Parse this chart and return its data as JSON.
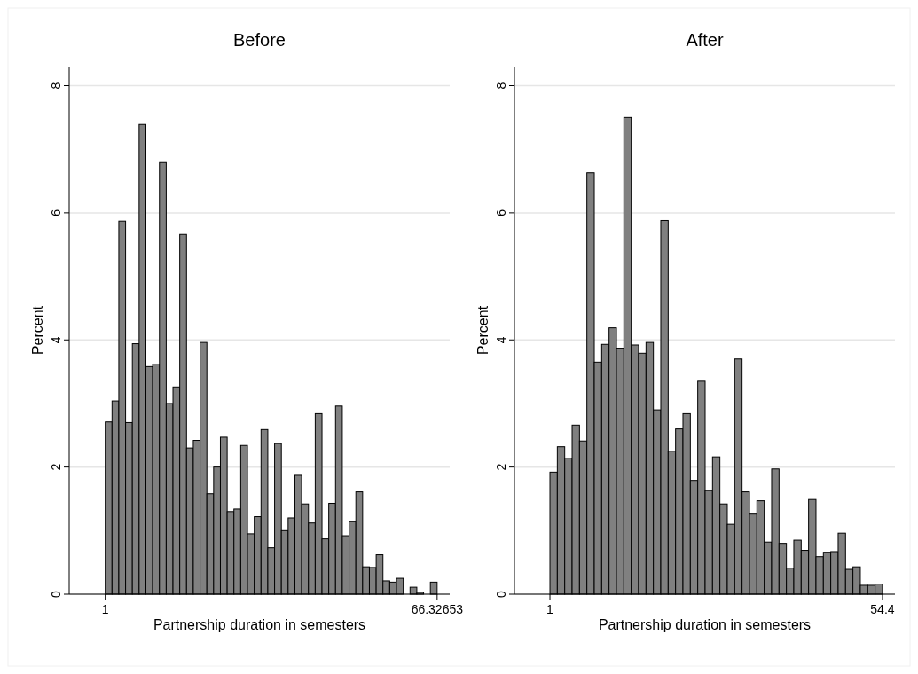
{
  "chart_data": [
    {
      "type": "histogram",
      "title": "Before",
      "xlabel": "Partnership duration in semesters",
      "ylabel": "Percent",
      "color": "#808080",
      "grid": "y",
      "xlim": [
        -6.1,
        68.8
      ],
      "xticks": [
        1,
        66.32653
      ],
      "ylim": [
        0,
        8.3
      ],
      "yticks": [
        0,
        2,
        4,
        6,
        8
      ],
      "bins": [
        1,
        2.3332,
        3.6664,
        4.9996,
        6.3328,
        7.666,
        8.9992,
        10.3324,
        11.6656,
        12.9987,
        14.3319,
        15.6651,
        16.9983,
        18.3315,
        19.6647,
        20.9979,
        22.3311,
        23.6643,
        24.9975,
        26.3307,
        27.6639,
        28.9971,
        30.3303,
        31.6635,
        32.9967,
        34.3299,
        35.663,
        36.9962,
        38.3294,
        39.6626,
        40.9958,
        42.329,
        43.6622,
        44.9954,
        46.3286,
        47.6618,
        48.995,
        50.3282,
        51.6614,
        52.9946,
        54.3278,
        55.661,
        56.9942,
        58.3274,
        59.6605,
        60.9937,
        62.3269,
        63.6601,
        64.9933,
        66.32653
      ],
      "values": [
        2.71,
        3.04,
        5.87,
        2.7,
        3.94,
        7.39,
        3.58,
        3.62,
        6.79,
        3.0,
        3.26,
        5.66,
        2.3,
        2.42,
        3.96,
        1.58,
        2.0,
        2.47,
        1.3,
        1.34,
        2.34,
        0.95,
        1.22,
        2.59,
        0.73,
        2.37,
        1.0,
        1.2,
        1.87,
        1.42,
        1.12,
        2.84,
        0.87,
        1.43,
        2.96,
        0.92,
        1.14,
        1.61,
        0.43,
        0.42,
        0.62,
        0.21,
        0.19,
        0.25,
        0,
        0.11,
        0.03,
        0,
        0.19
      ]
    },
    {
      "type": "histogram",
      "title": "After",
      "xlabel": "Partnership duration in semesters",
      "ylabel": "Percent",
      "color": "#808080",
      "grid": "y",
      "xlim": [
        -4.7,
        56.4
      ],
      "xticks": [
        1,
        54.4
      ],
      "ylim": [
        0,
        8.3
      ],
      "yticks": [
        0,
        2,
        4,
        6,
        8
      ],
      "bins": [
        1,
        2.1867,
        3.3733,
        4.56,
        5.7467,
        6.9333,
        8.12,
        9.3067,
        10.4933,
        11.68,
        12.8667,
        14.0533,
        15.24,
        16.4267,
        17.6133,
        18.8,
        19.9867,
        21.1733,
        22.36,
        23.5467,
        24.7333,
        25.92,
        27.1067,
        28.2933,
        29.48,
        30.6667,
        31.8533,
        33.04,
        34.2267,
        35.4133,
        36.6,
        37.7867,
        38.9733,
        40.16,
        41.3467,
        42.5333,
        43.72,
        44.9067,
        46.0933,
        47.28,
        48.4667,
        49.6533,
        50.84,
        52.0267,
        53.2133,
        54.4
      ],
      "values": [
        1.92,
        2.32,
        2.14,
        2.66,
        2.41,
        6.63,
        3.65,
        3.93,
        4.19,
        3.87,
        7.5,
        3.92,
        3.79,
        3.96,
        2.9,
        5.88,
        2.25,
        2.6,
        2.84,
        1.79,
        3.35,
        1.63,
        2.16,
        1.42,
        1.1,
        3.7,
        1.61,
        1.26,
        1.47,
        0.82,
        1.97,
        0.8,
        0.41,
        0.85,
        0.69,
        1.49,
        0.59,
        0.66,
        0.67,
        0.96,
        0.39,
        0.43,
        0.14,
        0.14,
        0.16
      ]
    }
  ]
}
